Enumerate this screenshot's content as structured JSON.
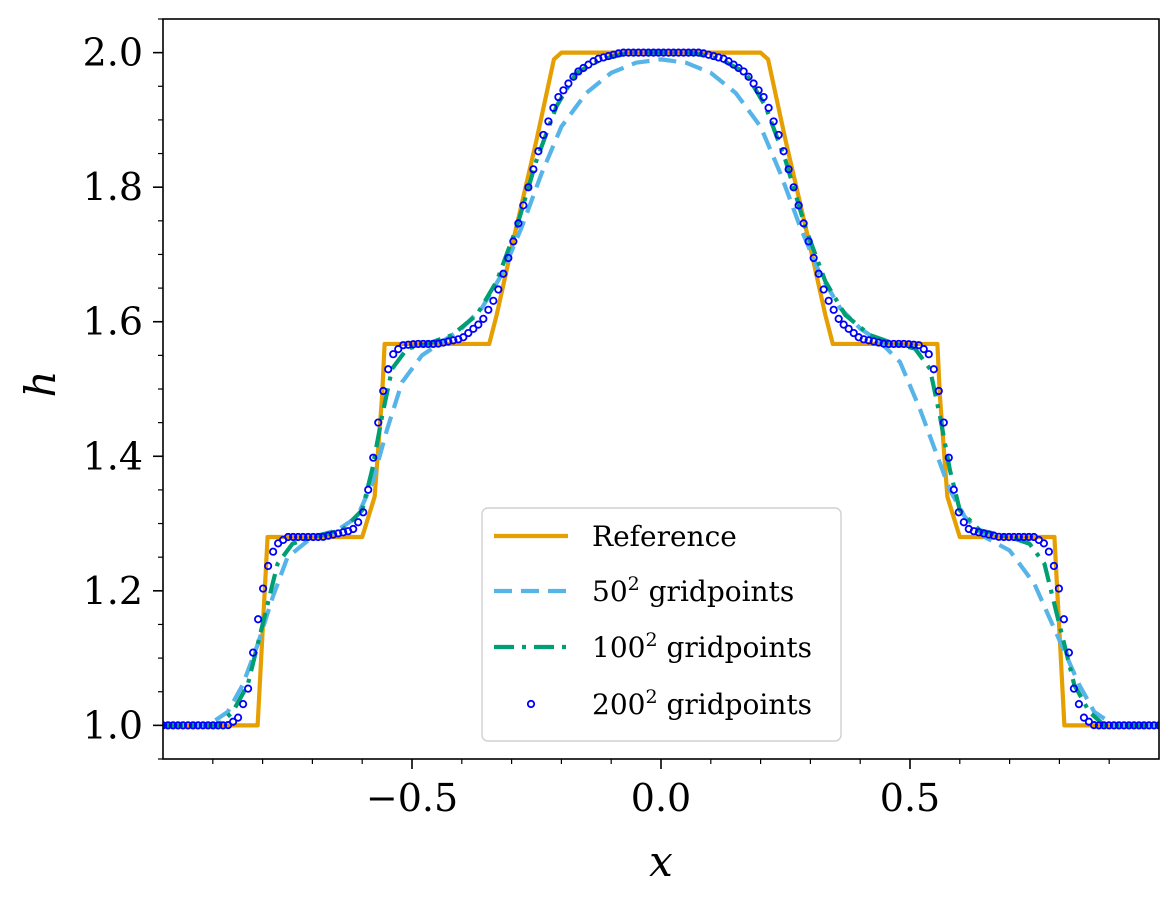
{
  "chart_data": {
    "type": "line",
    "title": "",
    "xlabel": "x",
    "ylabel": "h",
    "xlim": [
      -1.0,
      1.0
    ],
    "ylim": [
      0.95,
      2.05
    ],
    "xticks": [
      -0.5,
      0.0,
      0.5
    ],
    "xtick_labels": [
      "−0.5",
      "0.0",
      "0.5"
    ],
    "yticks": [
      1.0,
      1.2,
      1.4,
      1.6,
      1.8,
      2.0
    ],
    "ytick_labels": [
      "1.0",
      "1.2",
      "1.4",
      "1.6",
      "1.8",
      "2.0"
    ],
    "legend_position": "lower-center",
    "series": [
      {
        "name": "Reference",
        "legend_base": "Reference",
        "legend_sup": "",
        "legend_rest": "",
        "style": "solid",
        "color": "#E69F00",
        "x": [
          -1.0,
          -0.81,
          -0.8,
          -0.79,
          -0.6,
          -0.575,
          -0.56,
          -0.555,
          -0.345,
          -0.33,
          -0.3,
          -0.25,
          -0.215,
          -0.2,
          0.2,
          0.215,
          0.25,
          0.3,
          0.33,
          0.345,
          0.555,
          0.56,
          0.575,
          0.6,
          0.79,
          0.8,
          0.81,
          1.0
        ],
        "y": [
          1.0,
          1.0,
          1.14,
          1.28,
          1.28,
          1.34,
          1.49,
          1.567,
          1.567,
          1.61,
          1.71,
          1.87,
          1.99,
          2.0,
          2.0,
          1.99,
          1.87,
          1.71,
          1.61,
          1.567,
          1.567,
          1.49,
          1.34,
          1.28,
          1.28,
          1.14,
          1.0,
          1.0
        ]
      },
      {
        "name": "50^2 gridpoints",
        "legend_base": "50",
        "legend_sup": "2",
        "legend_rest": " gridpoints",
        "style": "dashed",
        "color": "#56B4E9",
        "x": [
          -1.0,
          -0.91,
          -0.87,
          -0.84,
          -0.81,
          -0.78,
          -0.75,
          -0.7,
          -0.65,
          -0.61,
          -0.58,
          -0.55,
          -0.52,
          -0.48,
          -0.44,
          -0.4,
          -0.36,
          -0.32,
          -0.28,
          -0.24,
          -0.2,
          -0.15,
          -0.1,
          -0.05,
          0.0,
          0.05,
          0.1,
          0.15,
          0.2,
          0.24,
          0.28,
          0.32,
          0.36,
          0.4,
          0.44,
          0.48,
          0.52,
          0.55,
          0.58,
          0.61,
          0.65,
          0.7,
          0.75,
          0.78,
          0.81,
          0.84,
          0.87,
          0.91,
          1.0
        ],
        "y": [
          1.0,
          1.0,
          1.02,
          1.06,
          1.12,
          1.19,
          1.25,
          1.28,
          1.29,
          1.31,
          1.36,
          1.44,
          1.51,
          1.55,
          1.57,
          1.59,
          1.62,
          1.67,
          1.74,
          1.82,
          1.89,
          1.94,
          1.97,
          1.985,
          1.99,
          1.985,
          1.97,
          1.94,
          1.89,
          1.82,
          1.74,
          1.67,
          1.62,
          1.59,
          1.57,
          1.54,
          1.47,
          1.41,
          1.35,
          1.31,
          1.28,
          1.26,
          1.21,
          1.16,
          1.11,
          1.06,
          1.02,
          1.0,
          1.0
        ]
      },
      {
        "name": "100^2 gridpoints",
        "legend_base": "100",
        "legend_sup": "2",
        "legend_rest": " gridpoints",
        "style": "dashdot",
        "color": "#009E73",
        "x": [
          -1.0,
          -0.89,
          -0.86,
          -0.83,
          -0.81,
          -0.79,
          -0.77,
          -0.74,
          -0.7,
          -0.64,
          -0.6,
          -0.58,
          -0.56,
          -0.54,
          -0.51,
          -0.47,
          -0.42,
          -0.37,
          -0.33,
          -0.29,
          -0.25,
          -0.21,
          -0.17,
          -0.12,
          -0.06,
          0.0,
          0.06,
          0.12,
          0.17,
          0.21,
          0.25,
          0.29,
          0.33,
          0.37,
          0.42,
          0.47,
          0.51,
          0.54,
          0.56,
          0.58,
          0.6,
          0.64,
          0.7,
          0.74,
          0.77,
          0.79,
          0.81,
          0.83,
          0.86,
          0.89,
          1.0
        ],
        "y": [
          1.0,
          1.0,
          1.02,
          1.06,
          1.12,
          1.18,
          1.24,
          1.27,
          1.28,
          1.29,
          1.32,
          1.38,
          1.46,
          1.53,
          1.56,
          1.567,
          1.58,
          1.61,
          1.66,
          1.74,
          1.84,
          1.92,
          1.97,
          1.99,
          2.0,
          2.0,
          2.0,
          1.99,
          1.97,
          1.92,
          1.84,
          1.74,
          1.66,
          1.61,
          1.58,
          1.567,
          1.56,
          1.53,
          1.46,
          1.38,
          1.32,
          1.29,
          1.28,
          1.27,
          1.24,
          1.18,
          1.12,
          1.06,
          1.02,
          1.0,
          1.0
        ]
      },
      {
        "name": "200^2 gridpoints",
        "legend_base": "200",
        "legend_sup": "2",
        "legend_rest": " gridpoints",
        "style": "dots",
        "color": "#0000FF",
        "x": [
          -1.0,
          -0.87,
          -0.85,
          -0.83,
          -0.815,
          -0.8,
          -0.785,
          -0.77,
          -0.75,
          -0.72,
          -0.68,
          -0.62,
          -0.6,
          -0.585,
          -0.57,
          -0.555,
          -0.54,
          -0.52,
          -0.49,
          -0.45,
          -0.4,
          -0.36,
          -0.33,
          -0.3,
          -0.27,
          -0.24,
          -0.21,
          -0.17,
          -0.13,
          -0.08,
          -0.04,
          0.0,
          0.04,
          0.08,
          0.13,
          0.17,
          0.21,
          0.24,
          0.27,
          0.3,
          0.33,
          0.36,
          0.4,
          0.45,
          0.49,
          0.52,
          0.54,
          0.555,
          0.57,
          0.585,
          0.6,
          0.62,
          0.68,
          0.72,
          0.75,
          0.77,
          0.785,
          0.8,
          0.815,
          0.83,
          0.85,
          0.87,
          1.0
        ],
        "y": [
          1.0,
          1.0,
          1.01,
          1.05,
          1.13,
          1.2,
          1.25,
          1.27,
          1.28,
          1.28,
          1.28,
          1.29,
          1.31,
          1.36,
          1.44,
          1.51,
          1.55,
          1.565,
          1.567,
          1.567,
          1.575,
          1.6,
          1.64,
          1.71,
          1.79,
          1.87,
          1.93,
          1.97,
          1.99,
          2.0,
          2.0,
          2.0,
          2.0,
          2.0,
          1.99,
          1.97,
          1.93,
          1.87,
          1.79,
          1.71,
          1.64,
          1.6,
          1.575,
          1.567,
          1.567,
          1.565,
          1.55,
          1.51,
          1.44,
          1.36,
          1.31,
          1.29,
          1.28,
          1.28,
          1.28,
          1.27,
          1.25,
          1.2,
          1.13,
          1.05,
          1.01,
          1.0,
          1.0
        ]
      }
    ]
  }
}
